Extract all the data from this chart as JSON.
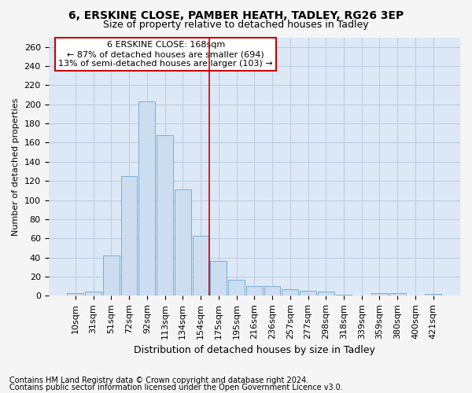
{
  "title1": "6, ERSKINE CLOSE, PAMBER HEATH, TADLEY, RG26 3EP",
  "title2": "Size of property relative to detached houses in Tadley",
  "xlabel": "Distribution of detached houses by size in Tadley",
  "ylabel": "Number of detached properties",
  "footnote1": "Contains HM Land Registry data © Crown copyright and database right 2024.",
  "footnote2": "Contains public sector information licensed under the Open Government Licence v3.0.",
  "annotation_line1": "6 ERSKINE CLOSE: 168sqm",
  "annotation_line2": "← 87% of detached houses are smaller (694)",
  "annotation_line3": "13% of semi-detached houses are larger (103) →",
  "bar_labels": [
    "10sqm",
    "31sqm",
    "51sqm",
    "72sqm",
    "92sqm",
    "113sqm",
    "134sqm",
    "154sqm",
    "175sqm",
    "195sqm",
    "216sqm",
    "236sqm",
    "257sqm",
    "277sqm",
    "298sqm",
    "318sqm",
    "339sqm",
    "359sqm",
    "380sqm",
    "400sqm",
    "421sqm"
  ],
  "bar_values": [
    3,
    4,
    42,
    125,
    203,
    168,
    111,
    63,
    36,
    17,
    10,
    10,
    7,
    5,
    4,
    1,
    0,
    3,
    3,
    0,
    2
  ],
  "bar_color": "#ccddf0",
  "bar_edge_color": "#7aafd4",
  "vline_color": "#cc0000",
  "vline_x": 7.5,
  "grid_color": "#b8cce0",
  "bg_color": "#dce8f5",
  "annotation_box_edge_color": "#cc0000",
  "fig_bg_color": "#f5f5f5",
  "ylim": [
    0,
    270
  ],
  "yticks": [
    0,
    20,
    40,
    60,
    80,
    100,
    120,
    140,
    160,
    180,
    200,
    220,
    240,
    260
  ],
  "title1_fontsize": 10,
  "title2_fontsize": 9,
  "xlabel_fontsize": 9,
  "ylabel_fontsize": 8,
  "tick_fontsize": 8,
  "ann_fontsize": 8,
  "footnote_fontsize": 7
}
